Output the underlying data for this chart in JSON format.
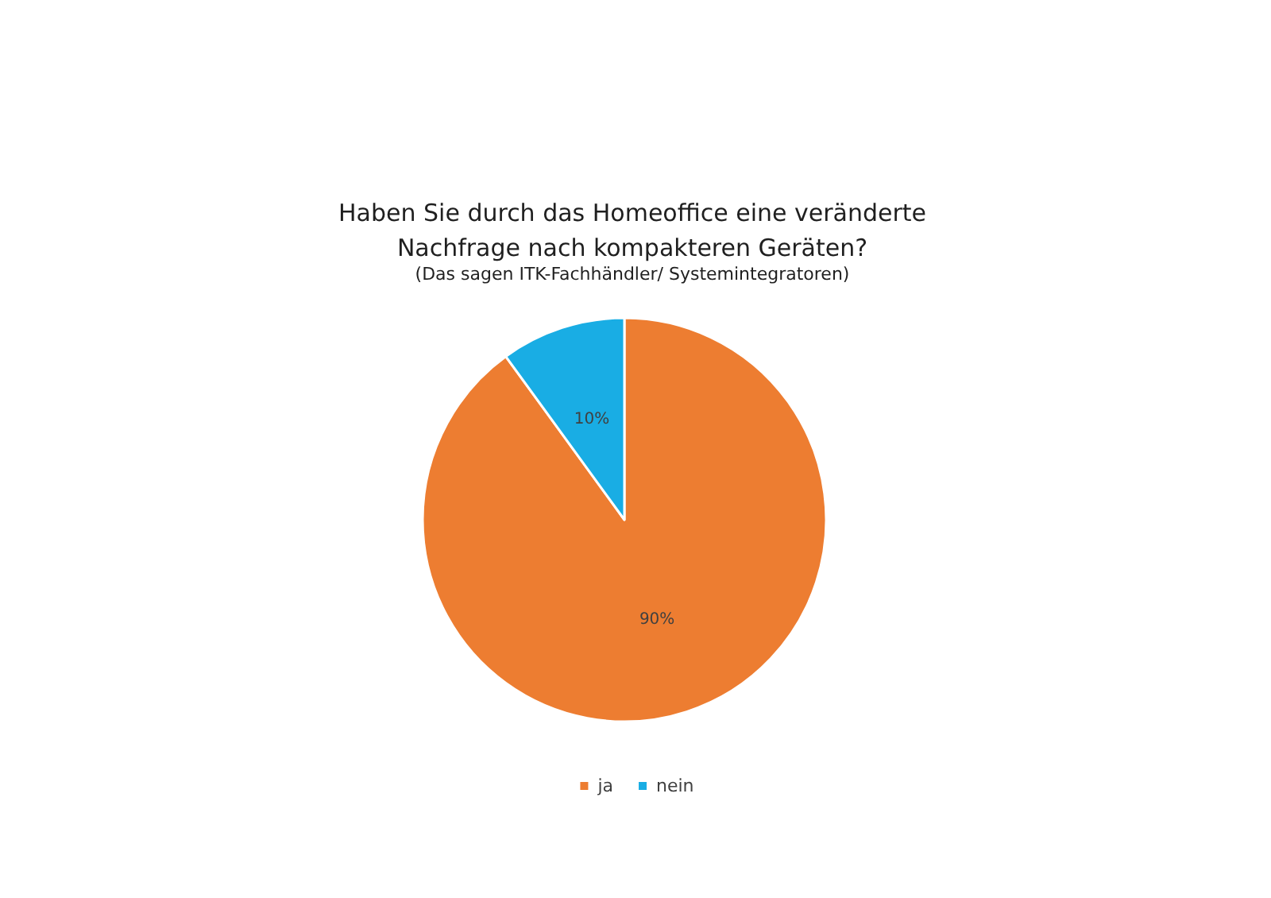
{
  "chart_data": {
    "type": "pie",
    "title": "Haben Sie durch das Homeoffice eine veränderte\nNachfrage nach kompakteren Geräten?",
    "subtitle": "(Das sagen ITK-Fachhändler/ Systemintegratoren)",
    "categories": [
      "ja",
      "nein"
    ],
    "values": [
      90,
      10
    ],
    "colors": [
      "#ed7d31",
      "#19ade4"
    ],
    "value_labels": [
      "90%",
      "10%"
    ],
    "legend": "bottom"
  }
}
